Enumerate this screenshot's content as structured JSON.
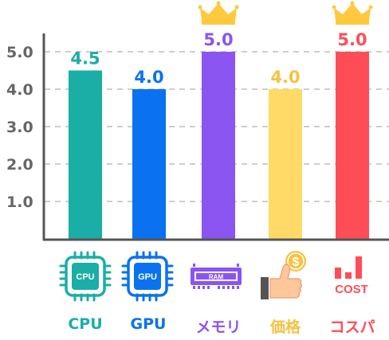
{
  "chart_data": {
    "type": "bar",
    "categories": [
      "CPU",
      "GPU",
      "メモリ",
      "価格",
      "コスパ"
    ],
    "values": [
      4.5,
      4.0,
      5.0,
      4.0,
      5.0
    ],
    "value_labels": [
      "4.5",
      "4.0",
      "5.0",
      "4.0",
      "5.0"
    ],
    "colors": [
      "#1aaea6",
      "#0a72f0",
      "#8a55f0",
      "#ffda66",
      "#ff4d57"
    ],
    "label_colors": [
      "#1aaea6",
      "#0a72f0",
      "#8a55f0",
      "#f5c242",
      "#ff4d57"
    ],
    "yticks": [
      "1.0",
      "2.0",
      "3.0",
      "4.0",
      "5.0"
    ],
    "ylim": [
      0,
      5.5
    ],
    "grid": true,
    "crowned": [
      2,
      4
    ],
    "crown_color": "#ffc93d",
    "icons": [
      "cpu-chip-icon",
      "gpu-chip-icon",
      "ram-module-icon",
      "thumbs-up-coin-icon",
      "cost-chart-icon"
    ],
    "icon_text": {
      "cpu": "CPU",
      "gpu": "GPU",
      "ram": "RAM",
      "coin": "$",
      "cost": "COST"
    }
  }
}
